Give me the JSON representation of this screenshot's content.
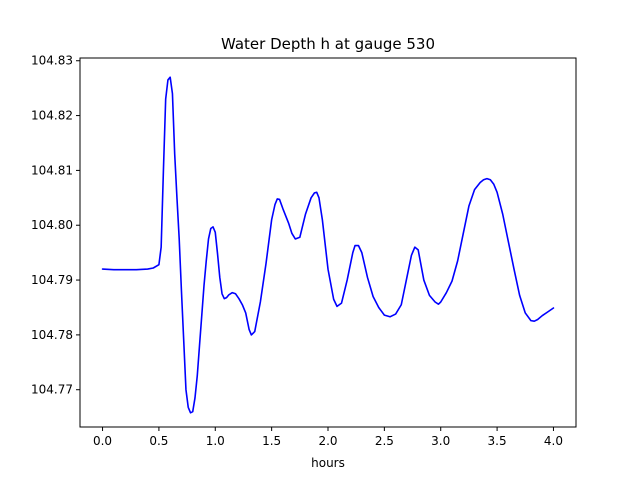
{
  "chart_data": {
    "type": "line",
    "title": "Water Depth h at gauge 530",
    "xlabel": "hours",
    "ylabel": "",
    "xlim": [
      -0.2,
      4.2
    ],
    "ylim": [
      104.7632,
      104.8305
    ],
    "grid": false,
    "legend": "none",
    "xticks": [
      0.0,
      0.5,
      1.0,
      1.5,
      2.0,
      2.5,
      3.0,
      3.5,
      4.0
    ],
    "xtick_labels": [
      "0.0",
      "0.5",
      "1.0",
      "1.5",
      "2.0",
      "2.5",
      "3.0",
      "3.5",
      "4.0"
    ],
    "yticks": [
      104.77,
      104.78,
      104.79,
      104.8,
      104.81,
      104.82,
      104.83
    ],
    "ytick_labels": [
      "104.77",
      "104.78",
      "104.79",
      "104.80",
      "104.81",
      "104.82",
      "104.83"
    ],
    "series": [
      {
        "color": "#0000ff",
        "x": [
          0.0,
          0.1,
          0.2,
          0.3,
          0.4,
          0.45,
          0.5,
          0.52,
          0.54,
          0.56,
          0.58,
          0.6,
          0.62,
          0.64,
          0.66,
          0.68,
          0.7,
          0.72,
          0.74,
          0.76,
          0.78,
          0.8,
          0.82,
          0.84,
          0.86,
          0.88,
          0.9,
          0.92,
          0.94,
          0.96,
          0.98,
          1.0,
          1.02,
          1.04,
          1.06,
          1.08,
          1.1,
          1.12,
          1.15,
          1.18,
          1.21,
          1.24,
          1.27,
          1.3,
          1.32,
          1.35,
          1.4,
          1.45,
          1.5,
          1.53,
          1.55,
          1.57,
          1.6,
          1.65,
          1.68,
          1.71,
          1.75,
          1.8,
          1.85,
          1.88,
          1.9,
          1.92,
          1.95,
          2.0,
          2.05,
          2.08,
          2.12,
          2.17,
          2.22,
          2.24,
          2.27,
          2.3,
          2.35,
          2.4,
          2.45,
          2.5,
          2.55,
          2.6,
          2.65,
          2.7,
          2.74,
          2.77,
          2.8,
          2.85,
          2.9,
          2.95,
          2.98,
          3.0,
          3.05,
          3.1,
          3.15,
          3.2,
          3.25,
          3.3,
          3.35,
          3.38,
          3.41,
          3.44,
          3.47,
          3.5,
          3.55,
          3.6,
          3.65,
          3.7,
          3.75,
          3.8,
          3.83,
          3.86,
          3.9,
          3.95,
          4.0
        ],
        "values": [
          104.792,
          104.7919,
          104.7919,
          104.7919,
          104.792,
          104.7922,
          104.7928,
          104.796,
          104.81,
          104.823,
          104.8265,
          104.827,
          104.824,
          104.813,
          104.805,
          104.7975,
          104.788,
          104.779,
          104.77,
          104.7668,
          104.7658,
          104.766,
          104.7685,
          104.7725,
          104.778,
          104.7835,
          104.789,
          104.7935,
          104.7975,
          104.7994,
          104.7997,
          104.7987,
          104.7948,
          104.7905,
          104.7875,
          104.7866,
          104.7868,
          104.7873,
          104.7877,
          104.7875,
          104.7866,
          104.7855,
          104.784,
          104.781,
          104.78,
          104.7806,
          104.786,
          104.793,
          104.801,
          104.8038,
          104.8048,
          104.8047,
          104.803,
          104.8004,
          104.7985,
          104.7975,
          104.7978,
          104.802,
          104.805,
          104.8059,
          104.806,
          104.805,
          104.801,
          104.792,
          104.7865,
          104.7852,
          104.7858,
          104.79,
          104.795,
          104.7963,
          104.7963,
          104.795,
          104.7905,
          104.787,
          104.785,
          104.7836,
          104.7833,
          104.7838,
          104.7855,
          104.7905,
          104.7945,
          104.796,
          104.7955,
          104.79,
          104.7872,
          104.786,
          104.7856,
          104.786,
          104.7877,
          104.7898,
          104.7935,
          104.7985,
          104.8035,
          104.8065,
          104.8078,
          104.8083,
          104.8085,
          104.8083,
          104.8075,
          104.806,
          104.802,
          104.797,
          104.792,
          104.7872,
          104.784,
          104.7826,
          104.7825,
          104.7828,
          104.7835,
          104.7842,
          104.7849
        ]
      }
    ]
  }
}
